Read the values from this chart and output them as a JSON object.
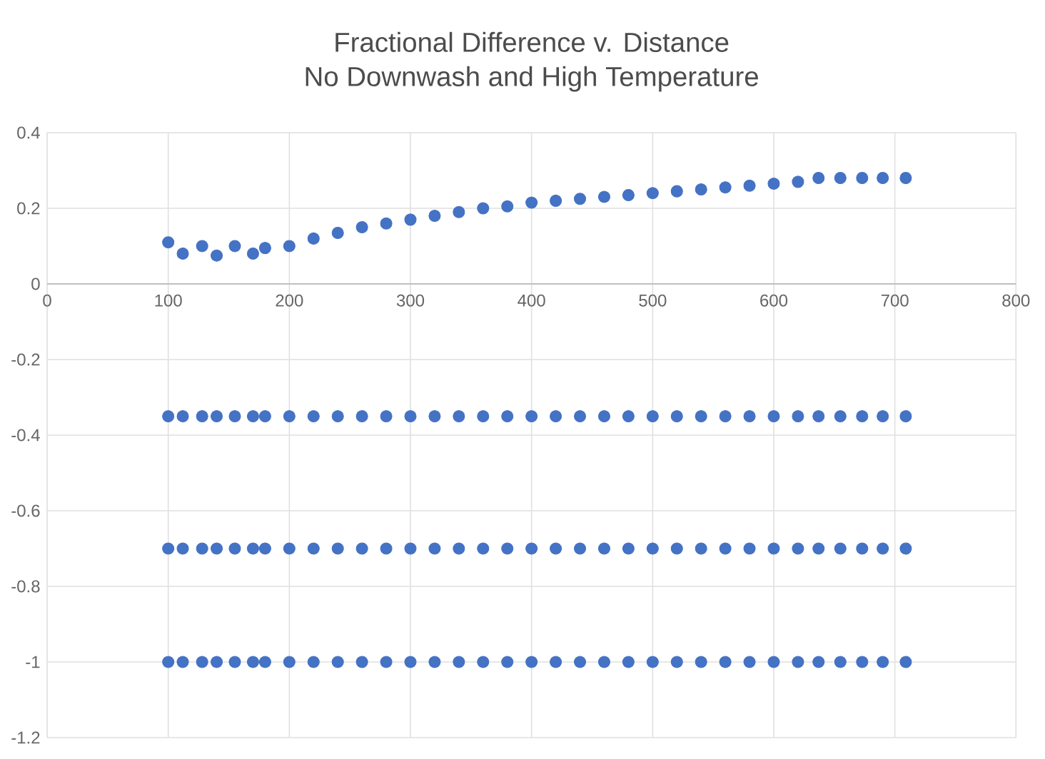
{
  "chart_data": {
    "type": "scatter",
    "title": "Fractional Difference v. Distance",
    "subtitle": "No Downwash and High Temperature",
    "xlim": [
      0,
      800
    ],
    "xticks": [
      0,
      100,
      200,
      300,
      400,
      500,
      600,
      700,
      800
    ],
    "ylim": [
      -1.2,
      0.4
    ],
    "yticks": [
      -1.2,
      -1,
      -0.8,
      -0.6,
      -0.4,
      -0.2,
      0,
      0.2,
      0.4
    ],
    "grid": true,
    "marker": "circle",
    "series": [
      {
        "color": "#4472c4",
        "x": [
          100,
          100,
          100,
          100,
          112,
          112,
          112,
          112,
          128,
          128,
          128,
          128,
          140,
          140,
          140,
          140,
          155,
          155,
          155,
          155,
          170,
          170,
          170,
          170,
          180,
          180,
          180,
          180,
          200,
          200,
          200,
          200,
          220,
          220,
          220,
          220,
          240,
          240,
          240,
          240,
          260,
          260,
          260,
          260,
          280,
          280,
          280,
          280,
          300,
          300,
          300,
          300,
          320,
          320,
          320,
          320,
          340,
          340,
          340,
          340,
          360,
          360,
          360,
          360,
          380,
          380,
          380,
          380,
          400,
          400,
          400,
          400,
          420,
          420,
          420,
          420,
          440,
          440,
          440,
          440,
          460,
          460,
          460,
          460,
          480,
          480,
          480,
          480,
          500,
          500,
          500,
          500,
          520,
          520,
          520,
          520,
          540,
          540,
          540,
          540,
          560,
          560,
          560,
          560,
          580,
          580,
          580,
          580,
          600,
          600,
          600,
          600,
          620,
          620,
          620,
          620,
          637,
          637,
          637,
          637,
          655,
          655,
          655,
          655,
          673,
          673,
          673,
          673,
          690,
          690,
          690,
          690,
          709,
          709,
          709,
          709
        ],
        "values": [
          0.11,
          -0.35,
          -0.7,
          -1,
          0.08,
          -0.35,
          -0.7,
          -1,
          0.1,
          -0.35,
          -0.7,
          -1,
          0.075,
          -0.35,
          -0.7,
          -1,
          0.1,
          -0.35,
          -0.7,
          -1,
          0.08,
          -0.35,
          -0.7,
          -1,
          0.095,
          -0.35,
          -0.7,
          -1,
          0.1,
          -0.35,
          -0.7,
          -1,
          0.12,
          -0.35,
          -0.7,
          -1,
          0.135,
          -0.35,
          -0.7,
          -1,
          0.15,
          -0.35,
          -0.7,
          -1,
          0.16,
          -0.35,
          -0.7,
          -1,
          0.17,
          -0.35,
          -0.7,
          -1,
          0.18,
          -0.35,
          -0.7,
          -1,
          0.19,
          -0.35,
          -0.7,
          -1,
          0.2,
          -0.35,
          -0.7,
          -1,
          0.205,
          -0.35,
          -0.7,
          -1,
          0.215,
          -0.35,
          -0.7,
          -1,
          0.22,
          -0.35,
          -0.7,
          -1,
          0.225,
          -0.35,
          -0.7,
          -1,
          0.23,
          -0.35,
          -0.7,
          -1,
          0.235,
          -0.35,
          -0.7,
          -1,
          0.24,
          -0.35,
          -0.7,
          -1,
          0.245,
          -0.35,
          -0.7,
          -1,
          0.25,
          -0.35,
          -0.7,
          -1,
          0.255,
          -0.35,
          -0.7,
          -1,
          0.26,
          -0.35,
          -0.7,
          -1,
          0.265,
          -0.35,
          -0.7,
          -1,
          0.27,
          -0.35,
          -0.7,
          -1,
          0.28,
          -0.35,
          -0.7,
          -1,
          0.28,
          -0.35,
          -0.7,
          -1,
          0.28,
          -0.35,
          -0.7,
          -1,
          0.28,
          -0.35,
          -0.7,
          -1,
          0.28,
          -0.35,
          -0.7,
          -1
        ]
      }
    ]
  }
}
